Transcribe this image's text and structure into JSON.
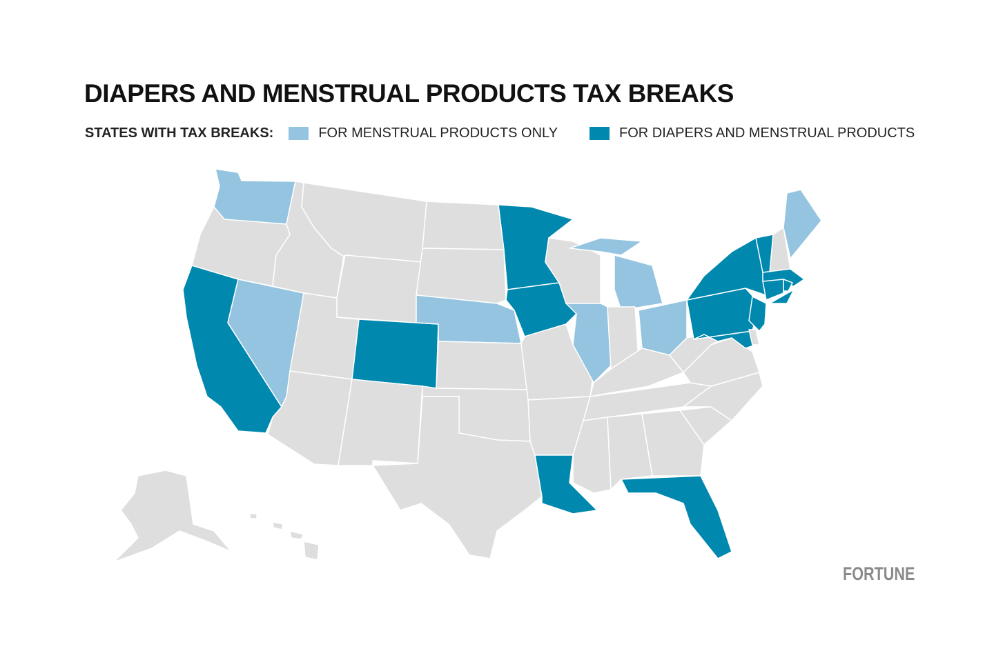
{
  "title": "DIAPERS AND MENSTRUAL PRODUCTS TAX BREAKS",
  "legend": {
    "lead": "STATES WITH TAX BREAKS:",
    "items": [
      {
        "key": "menstrual",
        "label": "FOR MENSTRUAL PRODUCTS ONLY",
        "color": "#94c4e0"
      },
      {
        "key": "both",
        "label": "FOR DIAPERS AND MENSTRUAL PRODUCTS",
        "color": "#0088ae"
      }
    ]
  },
  "colors": {
    "none": "#dedede",
    "menstrual": "#94c4e0",
    "both": "#0088ae"
  },
  "states": {
    "WA": "menstrual",
    "NV": "menstrual",
    "NE": "menstrual",
    "IL": "menstrual",
    "MI": "menstrual",
    "OH": "menstrual",
    "ME": "menstrual",
    "CA": "both",
    "CO": "both",
    "MN": "both",
    "IA": "both",
    "LA": "both",
    "FL": "both",
    "NY": "both",
    "VT": "both",
    "MA": "both",
    "CT": "both",
    "RI": "both",
    "PA": "both",
    "NJ": "both",
    "MD": "both",
    "OR": "none",
    "ID": "none",
    "MT": "none",
    "WY": "none",
    "UT": "none",
    "AZ": "none",
    "NM": "none",
    "ND": "none",
    "SD": "none",
    "KS": "none",
    "OK": "none",
    "TX": "none",
    "MO": "none",
    "AR": "none",
    "WI": "none",
    "IN": "none",
    "KY": "none",
    "TN": "none",
    "MS": "none",
    "AL": "none",
    "GA": "none",
    "SC": "none",
    "NC": "none",
    "VA": "none",
    "WV": "none",
    "DE": "none",
    "NH": "none",
    "AK": "none",
    "HI": "none"
  },
  "brand": "FORTUNE"
}
